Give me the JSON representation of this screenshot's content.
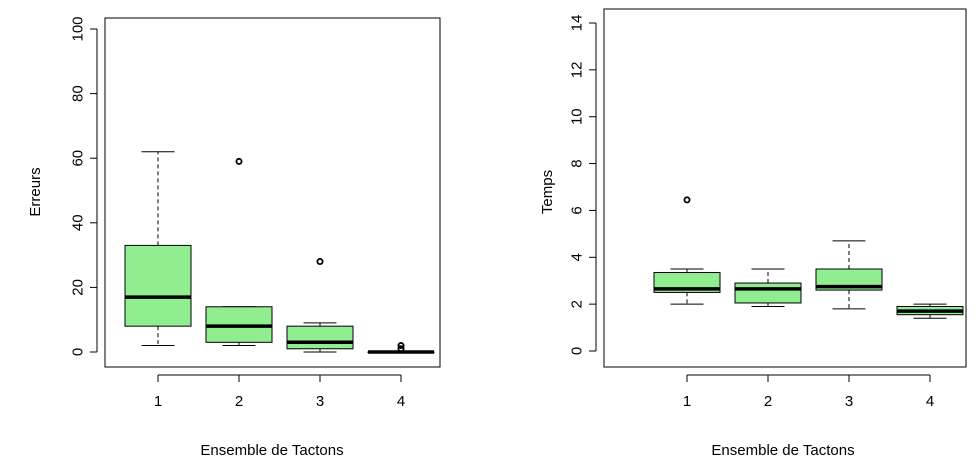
{
  "chart_data": [
    {
      "type": "boxplot",
      "title": "",
      "xlabel": "Ensemble de Tactons",
      "ylabel": "Erreurs",
      "categories": [
        "1",
        "2",
        "3",
        "4"
      ],
      "ylim": [
        0,
        100
      ],
      "yticks": [
        "0",
        "20",
        "40",
        "60",
        "80",
        "100"
      ],
      "box_fill": "#90ee90",
      "boxes": [
        {
          "category": "1",
          "whisker_low": 2,
          "q1": 8,
          "median": 17,
          "q3": 33,
          "whisker_high": 62,
          "outliers": []
        },
        {
          "category": "2",
          "whisker_low": 2,
          "q1": 3,
          "median": 8,
          "q3": 14,
          "whisker_high": 14,
          "outliers": [
            59
          ]
        },
        {
          "category": "3",
          "whisker_low": 0,
          "q1": 1,
          "median": 3,
          "q3": 8,
          "whisker_high": 9,
          "outliers": [
            28
          ]
        },
        {
          "category": "4",
          "whisker_low": 0,
          "q1": 0,
          "median": 0,
          "q3": 0,
          "whisker_high": 0,
          "outliers": [
            1,
            2
          ]
        }
      ]
    },
    {
      "type": "boxplot",
      "title": "",
      "xlabel": "Ensemble de Tactons",
      "ylabel": "Temps",
      "categories": [
        "1",
        "2",
        "3",
        "4"
      ],
      "ylim": [
        0,
        14
      ],
      "yticks": [
        "0",
        "2",
        "4",
        "6",
        "8",
        "10",
        "12",
        "14"
      ],
      "box_fill": "#90ee90",
      "boxes": [
        {
          "category": "1",
          "whisker_low": 2.0,
          "q1": 2.5,
          "median": 2.65,
          "q3": 3.35,
          "whisker_high": 3.5,
          "outliers": [
            6.45
          ]
        },
        {
          "category": "2",
          "whisker_low": 1.9,
          "q1": 2.05,
          "median": 2.65,
          "q3": 2.9,
          "whisker_high": 3.5,
          "outliers": []
        },
        {
          "category": "3",
          "whisker_low": 1.8,
          "q1": 2.6,
          "median": 2.75,
          "q3": 3.5,
          "whisker_high": 4.7,
          "outliers": []
        },
        {
          "category": "4",
          "whisker_low": 1.4,
          "q1": 1.55,
          "median": 1.7,
          "q3": 1.9,
          "whisker_high": 2.0,
          "outliers": []
        }
      ]
    }
  ]
}
